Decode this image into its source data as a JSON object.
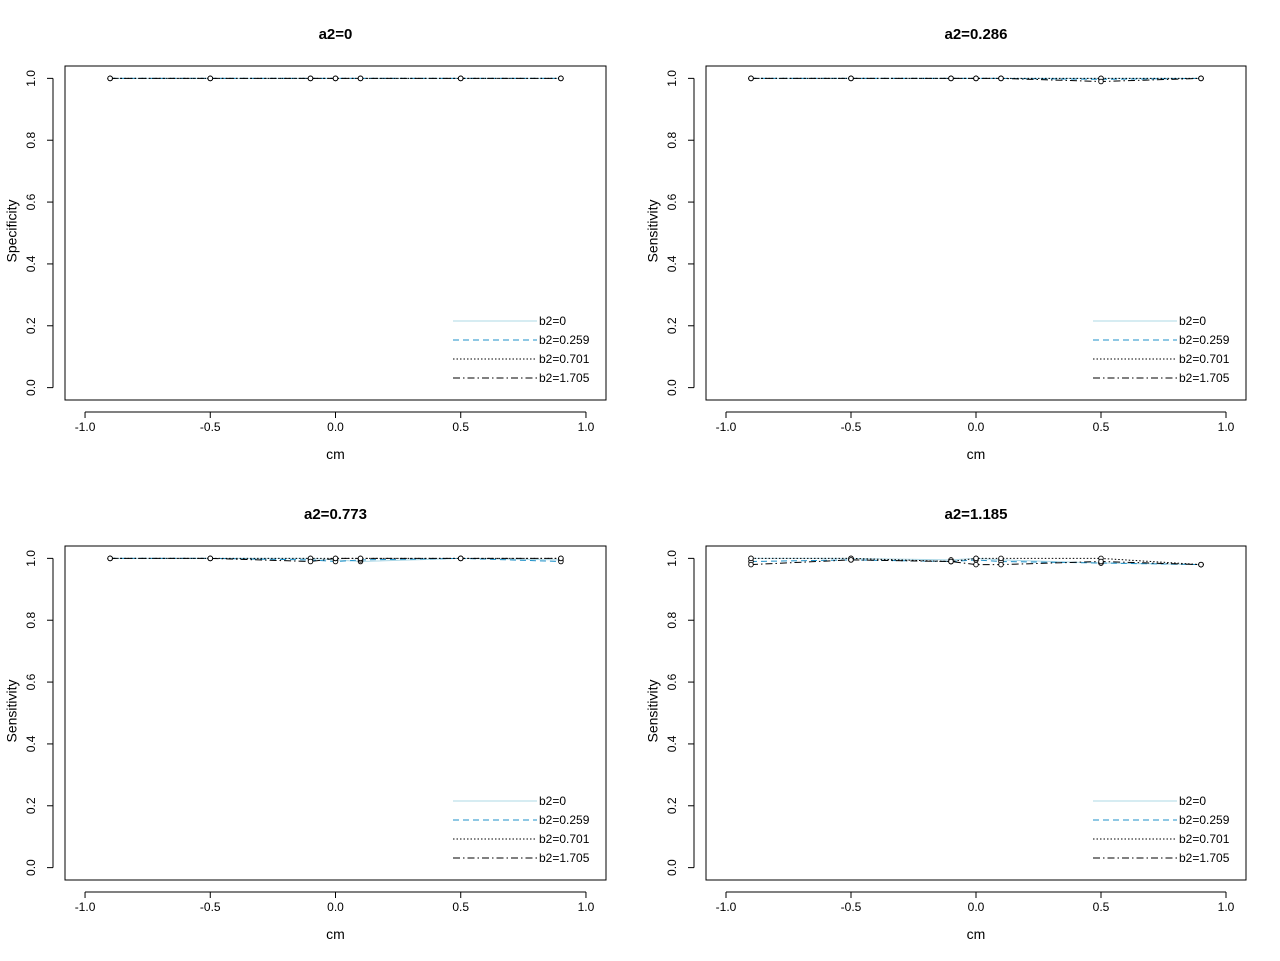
{
  "chart_data": [
    {
      "type": "line",
      "title": "a2=0",
      "xlabel": "cm",
      "ylabel": "Specificity",
      "xlim": [
        -1.0,
        1.0
      ],
      "ylim": [
        0.0,
        1.0
      ],
      "x_ticks": [
        "-1.0",
        "-0.5",
        "0.0",
        "0.5",
        "1.0"
      ],
      "y_ticks": [
        "0.0",
        "0.2",
        "0.4",
        "0.6",
        "0.8",
        "1.0"
      ],
      "x": [
        -0.9,
        -0.5,
        -0.1,
        0.0,
        0.1,
        0.5,
        0.9
      ],
      "legend_position": "bottom-right",
      "grid": false,
      "series": [
        {
          "name": "b2=0",
          "color": "#add8e6",
          "dash": "solid",
          "values": [
            1.0,
            1.0,
            1.0,
            1.0,
            1.0,
            1.0,
            1.0
          ]
        },
        {
          "name": "b2=0.259",
          "color": "#1e90c8",
          "dash": "dashed",
          "values": [
            1.0,
            1.0,
            1.0,
            1.0,
            1.0,
            1.0,
            1.0
          ]
        },
        {
          "name": "b2=0.701",
          "color": "#000000",
          "dash": "dotted",
          "values": [
            1.0,
            1.0,
            1.0,
            1.0,
            1.0,
            1.0,
            1.0
          ]
        },
        {
          "name": "b2=1.705",
          "color": "#000000",
          "dash": "dotdash",
          "values": [
            1.0,
            1.0,
            1.0,
            1.0,
            1.0,
            1.0,
            1.0
          ]
        }
      ]
    },
    {
      "type": "line",
      "title": "a2=0.286",
      "xlabel": "cm",
      "ylabel": "Sensitivity",
      "xlim": [
        -1.0,
        1.0
      ],
      "ylim": [
        0.0,
        1.0
      ],
      "x_ticks": [
        "-1.0",
        "-0.5",
        "0.0",
        "0.5",
        "1.0"
      ],
      "y_ticks": [
        "0.0",
        "0.2",
        "0.4",
        "0.6",
        "0.8",
        "1.0"
      ],
      "x": [
        -0.9,
        -0.5,
        -0.1,
        0.0,
        0.1,
        0.5,
        0.9
      ],
      "legend_position": "bottom-right",
      "grid": false,
      "series": [
        {
          "name": "b2=0",
          "color": "#add8e6",
          "dash": "solid",
          "values": [
            1.0,
            1.0,
            1.0,
            1.0,
            1.0,
            1.0,
            1.0
          ]
        },
        {
          "name": "b2=0.259",
          "color": "#1e90c8",
          "dash": "dashed",
          "values": [
            1.0,
            1.0,
            1.0,
            1.0,
            1.0,
            0.997,
            1.0
          ]
        },
        {
          "name": "b2=0.701",
          "color": "#000000",
          "dash": "dotted",
          "values": [
            1.0,
            1.0,
            1.0,
            1.0,
            1.0,
            1.0,
            1.0
          ]
        },
        {
          "name": "b2=1.705",
          "color": "#000000",
          "dash": "dotdash",
          "values": [
            1.0,
            1.0,
            1.0,
            1.0,
            1.0,
            0.99,
            1.0
          ]
        }
      ]
    },
    {
      "type": "line",
      "title": "a2=0.773",
      "xlabel": "cm",
      "ylabel": "Sensitivity",
      "xlim": [
        -1.0,
        1.0
      ],
      "ylim": [
        0.0,
        1.0
      ],
      "x_ticks": [
        "-1.0",
        "-0.5",
        "0.0",
        "0.5",
        "1.0"
      ],
      "y_ticks": [
        "0.0",
        "0.2",
        "0.4",
        "0.6",
        "0.8",
        "1.0"
      ],
      "x": [
        -0.9,
        -0.5,
        -0.1,
        0.0,
        0.1,
        0.5,
        0.9
      ],
      "legend_position": "bottom-right",
      "grid": false,
      "series": [
        {
          "name": "b2=0",
          "color": "#add8e6",
          "dash": "solid",
          "values": [
            1.0,
            1.0,
            1.0,
            0.995,
            0.99,
            1.0,
            0.995
          ]
        },
        {
          "name": "b2=0.259",
          "color": "#1e90c8",
          "dash": "dashed",
          "values": [
            1.0,
            1.0,
            0.995,
            0.99,
            0.995,
            1.0,
            0.99
          ]
        },
        {
          "name": "b2=0.701",
          "color": "#000000",
          "dash": "dotted",
          "values": [
            1.0,
            1.0,
            1.0,
            1.0,
            1.0,
            1.0,
            1.0
          ]
        },
        {
          "name": "b2=1.705",
          "color": "#000000",
          "dash": "dotdash",
          "values": [
            1.0,
            1.0,
            0.99,
            1.0,
            1.0,
            1.0,
            1.0
          ]
        }
      ]
    },
    {
      "type": "line",
      "title": "a2=1.185",
      "xlabel": "cm",
      "ylabel": "Sensitivity",
      "xlim": [
        -1.0,
        1.0
      ],
      "ylim": [
        0.0,
        1.0
      ],
      "x_ticks": [
        "-1.0",
        "-0.5",
        "0.0",
        "0.5",
        "1.0"
      ],
      "y_ticks": [
        "0.0",
        "0.2",
        "0.4",
        "0.6",
        "0.8",
        "1.0"
      ],
      "x": [
        -0.9,
        -0.5,
        -0.1,
        0.0,
        0.1,
        0.5,
        0.9
      ],
      "legend_position": "bottom-right",
      "grid": false,
      "series": [
        {
          "name": "b2=0",
          "color": "#add8e6",
          "dash": "solid",
          "values": [
            1.0,
            1.0,
            0.995,
            1.0,
            0.995,
            0.985,
            0.98
          ]
        },
        {
          "name": "b2=0.259",
          "color": "#1e90c8",
          "dash": "dashed",
          "values": [
            0.99,
            0.995,
            0.99,
            0.995,
            0.99,
            0.985,
            0.98
          ]
        },
        {
          "name": "b2=0.701",
          "color": "#000000",
          "dash": "dotted",
          "values": [
            1.0,
            1.0,
            0.99,
            1.0,
            1.0,
            1.0,
            0.98
          ]
        },
        {
          "name": "b2=1.705",
          "color": "#000000",
          "dash": "dotdash",
          "values": [
            0.98,
            0.995,
            0.99,
            0.98,
            0.98,
            0.99,
            0.98
          ]
        }
      ]
    }
  ]
}
